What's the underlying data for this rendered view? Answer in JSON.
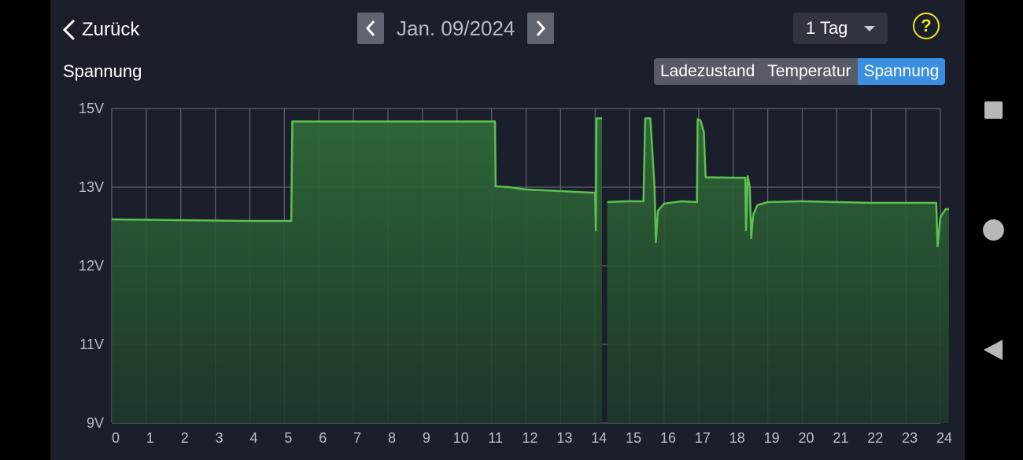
{
  "header": {
    "back_label": "Zurück",
    "date": "Jan. 09/2024",
    "range_select": "1 Tag",
    "help_label": "?"
  },
  "section_title": "Spannung",
  "tabs": [
    {
      "label": "Ladezustand",
      "active": false
    },
    {
      "label": "Temperatur",
      "active": false
    },
    {
      "label": "Spannung",
      "active": true
    }
  ],
  "colors": {
    "background": "#1b1f2c",
    "line": "#5dc04f",
    "fill": "#2f5a34",
    "active_tab": "#3b8fe0",
    "help": "#f3e51c"
  },
  "chart_data": {
    "type": "area",
    "xlabel": "",
    "ylabel": "",
    "x_ticks": [
      "0",
      "1",
      "2",
      "3",
      "4",
      "5",
      "6",
      "7",
      "8",
      "9",
      "10",
      "11",
      "12",
      "13",
      "14",
      "15",
      "16",
      "17",
      "18",
      "19",
      "20",
      "21",
      "22",
      "23",
      "24"
    ],
    "y_ticks": [
      "9V",
      "11V",
      "12V",
      "13V",
      "15V"
    ],
    "y_tick_values": [
      9,
      11,
      12,
      13,
      15
    ],
    "xlim": [
      0,
      24
    ],
    "ylim": [
      9,
      15
    ],
    "grid": true,
    "series": [
      {
        "segments": [
          [
            [
              0,
              12.59
            ],
            [
              2,
              12.58
            ],
            [
              4,
              12.57
            ],
            [
              5.2,
              12.57
            ],
            [
              5.23,
              14.67
            ],
            [
              8,
              14.67
            ],
            [
              11.1,
              14.67
            ],
            [
              11.12,
              13.02
            ],
            [
              11.5,
              13.0
            ],
            [
              12,
              12.97
            ],
            [
              13,
              12.95
            ],
            [
              13.9,
              12.93
            ],
            [
              14.0,
              12.93
            ],
            [
              14.02,
              12.45
            ],
            [
              14.04,
              14.75
            ],
            [
              14.2,
              14.75
            ]
          ],
          [
            [
              14.35,
              12.81
            ],
            [
              14.9,
              12.82
            ],
            [
              15.3,
              12.82
            ],
            [
              15.4,
              12.82
            ],
            [
              15.45,
              14.75
            ],
            [
              15.6,
              14.75
            ],
            [
              15.72,
              13.0
            ],
            [
              15.76,
              12.3
            ],
            [
              15.82,
              12.7
            ],
            [
              16,
              12.79
            ],
            [
              16.5,
              12.82
            ],
            [
              16.95,
              12.81
            ],
            [
              16.97,
              14.73
            ],
            [
              17.05,
              14.7
            ],
            [
              17.15,
              14.4
            ],
            [
              17.2,
              13.25
            ],
            [
              18.0,
              13.24
            ],
            [
              18.35,
              13.24
            ],
            [
              18.37,
              12.45
            ],
            [
              18.42,
              13.28
            ],
            [
              18.48,
              13.0
            ],
            [
              18.52,
              12.35
            ],
            [
              18.58,
              12.65
            ],
            [
              18.7,
              12.77
            ],
            [
              19,
              12.81
            ],
            [
              20,
              12.82
            ],
            [
              21,
              12.81
            ],
            [
              22,
              12.8
            ],
            [
              23.5,
              12.8
            ],
            [
              23.88,
              12.8
            ],
            [
              23.92,
              12.25
            ],
            [
              24,
              12.62
            ],
            [
              24.15,
              12.72
            ],
            [
              24.25,
              12.72
            ]
          ]
        ]
      }
    ]
  }
}
